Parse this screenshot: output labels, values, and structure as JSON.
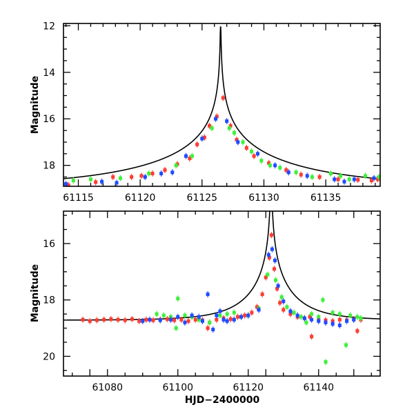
{
  "chart_data": [
    {
      "id": "top",
      "type": "scatter",
      "title": "",
      "xlabel": "",
      "ylabel": "Magnitude",
      "xlim": [
        61113.8,
        61139.4
      ],
      "ylim": [
        18.9,
        11.9
      ],
      "y_inverted": true,
      "x_tick_labels": [
        61115,
        61120,
        61125,
        61130,
        61135
      ],
      "x_minor_step": 1,
      "y_tick_labels": [
        12,
        14,
        16,
        18
      ],
      "y_minor_step": 0.5,
      "model_curve": {
        "name": "model",
        "color": "#000000",
        "peak_x": 61126.5,
        "peak_mag": 12.05,
        "baseline_mag": 18.95,
        "u0": 0.0011,
        "tE": 14.0
      },
      "series": [
        {
          "name": "red",
          "color": "#ff3b30",
          "points": [
            [
              61114.2,
              18.85
            ],
            [
              61116.4,
              18.72
            ],
            [
              61117.8,
              18.5
            ],
            [
              61119.3,
              18.5
            ],
            [
              61120.1,
              18.45
            ],
            [
              61121.0,
              18.35
            ],
            [
              61122.0,
              18.2
            ],
            [
              61123.0,
              17.95
            ],
            [
              61124.0,
              17.7
            ],
            [
              61124.6,
              17.1
            ],
            [
              61125.2,
              16.8
            ],
            [
              61125.6,
              16.3
            ],
            [
              61126.2,
              15.9
            ],
            [
              61126.7,
              15.1
            ],
            [
              61127.3,
              16.3
            ],
            [
              61127.8,
              16.9
            ],
            [
              61128.6,
              17.25
            ],
            [
              61129.2,
              17.6
            ],
            [
              61130.4,
              17.9
            ],
            [
              61131.8,
              18.2
            ],
            [
              61133.0,
              18.4
            ],
            [
              61134.5,
              18.5
            ],
            [
              61136.0,
              18.6
            ],
            [
              61137.6,
              18.62
            ],
            [
              61138.7,
              18.65
            ],
            [
              61139.2,
              18.6
            ]
          ]
        },
        {
          "name": "green",
          "color": "#3ef03a",
          "points": [
            [
              61114.6,
              18.65
            ],
            [
              61116.0,
              18.6
            ],
            [
              61118.4,
              18.55
            ],
            [
              61120.7,
              18.35
            ],
            [
              61122.9,
              18.0
            ],
            [
              61124.2,
              17.6
            ],
            [
              61125.8,
              16.4
            ],
            [
              61127.2,
              16.4
            ],
            [
              61127.6,
              16.6
            ],
            [
              61128.3,
              17.0
            ],
            [
              61129.0,
              17.4
            ],
            [
              61129.8,
              17.8
            ],
            [
              61130.5,
              18.0
            ],
            [
              61131.3,
              18.1
            ],
            [
              61132.6,
              18.3
            ],
            [
              61133.9,
              18.5
            ],
            [
              61135.4,
              18.35
            ],
            [
              61136.2,
              18.45
            ],
            [
              61136.9,
              18.6
            ],
            [
              61138.2,
              18.45
            ],
            [
              61139.3,
              18.5
            ]
          ]
        },
        {
          "name": "blue",
          "color": "#1f4bff",
          "points": [
            [
              61114.0,
              18.8
            ],
            [
              61116.9,
              18.7
            ],
            [
              61118.1,
              18.75
            ],
            [
              61120.4,
              18.5
            ],
            [
              61121.7,
              18.35
            ],
            [
              61122.6,
              18.3
            ],
            [
              61123.7,
              17.6
            ],
            [
              61125.0,
              16.85
            ],
            [
              61126.1,
              16.0
            ],
            [
              61127.0,
              16.1
            ],
            [
              61127.9,
              17.0
            ],
            [
              61129.5,
              17.5
            ],
            [
              61130.9,
              18.0
            ],
            [
              61132.0,
              18.3
            ],
            [
              61133.5,
              18.45
            ],
            [
              61135.7,
              18.6
            ],
            [
              61136.5,
              18.7
            ],
            [
              61137.3,
              18.6
            ],
            [
              61138.9,
              18.55
            ]
          ]
        }
      ]
    },
    {
      "id": "bottom",
      "type": "scatter",
      "title": "",
      "xlabel": "HJD−2400000",
      "ylabel": "Magnitude",
      "xlim": [
        61067.5,
        61157.5
      ],
      "ylim": [
        20.7,
        14.85
      ],
      "y_inverted": true,
      "x_tick_labels": [
        61080,
        61100,
        61120,
        61140
      ],
      "x_minor_step": 5,
      "y_tick_labels": [
        16,
        18,
        20
      ],
      "y_minor_step": 0.5,
      "model_curve": {
        "name": "model",
        "color": "#000000",
        "peak_x": 61126.5,
        "peak_mag": 12.05,
        "baseline_mag": 18.72,
        "u0": 0.0011,
        "tE": 14.0
      },
      "series": [
        {
          "name": "red",
          "color": "#ff3b30",
          "points": [
            [
              61073,
              18.7
            ],
            [
              61075,
              18.75
            ],
            [
              61077,
              18.72
            ],
            [
              61079,
              18.7
            ],
            [
              61081,
              18.68
            ],
            [
              61083,
              18.7
            ],
            [
              61085,
              18.72
            ],
            [
              61087,
              18.68
            ],
            [
              61089,
              18.75
            ],
            [
              61091,
              18.7
            ],
            [
              61093,
              18.72
            ],
            [
              61095,
              18.7
            ],
            [
              61097,
              18.68
            ],
            [
              61099,
              18.72
            ],
            [
              61101,
              18.7
            ],
            [
              61103,
              18.75
            ],
            [
              61105,
              18.7
            ],
            [
              61107,
              18.72
            ],
            [
              61108.5,
              19.0
            ],
            [
              61109,
              18.8
            ],
            [
              61111,
              18.7
            ],
            [
              61113,
              18.65
            ],
            [
              61115,
              18.68
            ],
            [
              61117,
              18.6
            ],
            [
              61119,
              18.55
            ],
            [
              61121,
              18.45
            ],
            [
              61122.5,
              18.25
            ],
            [
              61124,
              17.8
            ],
            [
              61125,
              17.2
            ],
            [
              61126,
              16.5
            ],
            [
              61126.6,
              15.7
            ],
            [
              61127.4,
              16.9
            ],
            [
              61128.2,
              17.6
            ],
            [
              61129,
              18.1
            ],
            [
              61130,
              18.35
            ],
            [
              61132,
              18.5
            ],
            [
              61134,
              18.6
            ],
            [
              61136,
              18.65
            ],
            [
              61137.5,
              18.6
            ],
            [
              61138,
              19.3
            ],
            [
              61140,
              18.7
            ],
            [
              61142,
              18.72
            ],
            [
              61144,
              18.75
            ],
            [
              61146,
              18.7
            ],
            [
              61148,
              18.72
            ],
            [
              61150,
              18.68
            ],
            [
              61151,
              19.1
            ],
            [
              61152,
              18.7
            ]
          ]
        },
        {
          "name": "green",
          "color": "#3ef03a",
          "points": [
            [
              61094,
              18.5
            ],
            [
              61096,
              18.55
            ],
            [
              61098,
              18.6
            ],
            [
              61099.5,
              19.0
            ],
            [
              61100,
              17.95
            ],
            [
              61102,
              18.55
            ],
            [
              61104,
              18.6
            ],
            [
              61106,
              18.7
            ],
            [
              61109,
              18.8
            ],
            [
              61112,
              18.55
            ],
            [
              61114,
              18.5
            ],
            [
              61116,
              18.45
            ],
            [
              61118,
              18.6
            ],
            [
              61120,
              18.55
            ],
            [
              61123,
              18.3
            ],
            [
              61125.5,
              17.1
            ],
            [
              61127.8,
              17.3
            ],
            [
              61129.5,
              17.9
            ],
            [
              61131,
              18.25
            ],
            [
              61133,
              18.45
            ],
            [
              61135,
              18.6
            ],
            [
              61136.5,
              18.8
            ],
            [
              61138,
              18.5
            ],
            [
              61140,
              18.6
            ],
            [
              61141.2,
              18.0
            ],
            [
              61142,
              20.2
            ],
            [
              61144,
              18.45
            ],
            [
              61146,
              18.5
            ],
            [
              61147.8,
              19.6
            ],
            [
              61149,
              18.55
            ],
            [
              61151,
              18.6
            ],
            [
              61152,
              18.65
            ]
          ]
        },
        {
          "name": "blue",
          "color": "#1f4bff",
          "points": [
            [
              61090,
              18.75
            ],
            [
              61092,
              18.7
            ],
            [
              61095,
              18.72
            ],
            [
              61098,
              18.7
            ],
            [
              61100,
              18.6
            ],
            [
              61102,
              18.8
            ],
            [
              61104,
              18.55
            ],
            [
              61106,
              18.6
            ],
            [
              61107,
              18.75
            ],
            [
              61108.5,
              17.8
            ],
            [
              61110,
              19.05
            ],
            [
              61111,
              18.55
            ],
            [
              61112,
              18.4
            ],
            [
              61113,
              18.7
            ],
            [
              61114,
              18.75
            ],
            [
              61116,
              18.7
            ],
            [
              61118,
              18.6
            ],
            [
              61120,
              18.55
            ],
            [
              61123,
              18.35
            ],
            [
              61125.8,
              16.4
            ],
            [
              61126.8,
              16.2
            ],
            [
              61127.6,
              16.6
            ],
            [
              61128.5,
              17.5
            ],
            [
              61130,
              18.05
            ],
            [
              61132,
              18.4
            ],
            [
              61134,
              18.55
            ],
            [
              61136,
              18.65
            ],
            [
              61138,
              18.7
            ],
            [
              61140,
              18.75
            ],
            [
              61142,
              18.8
            ],
            [
              61144,
              18.85
            ],
            [
              61146,
              18.9
            ],
            [
              61148,
              18.75
            ],
            [
              61150,
              18.7
            ]
          ]
        }
      ]
    }
  ]
}
